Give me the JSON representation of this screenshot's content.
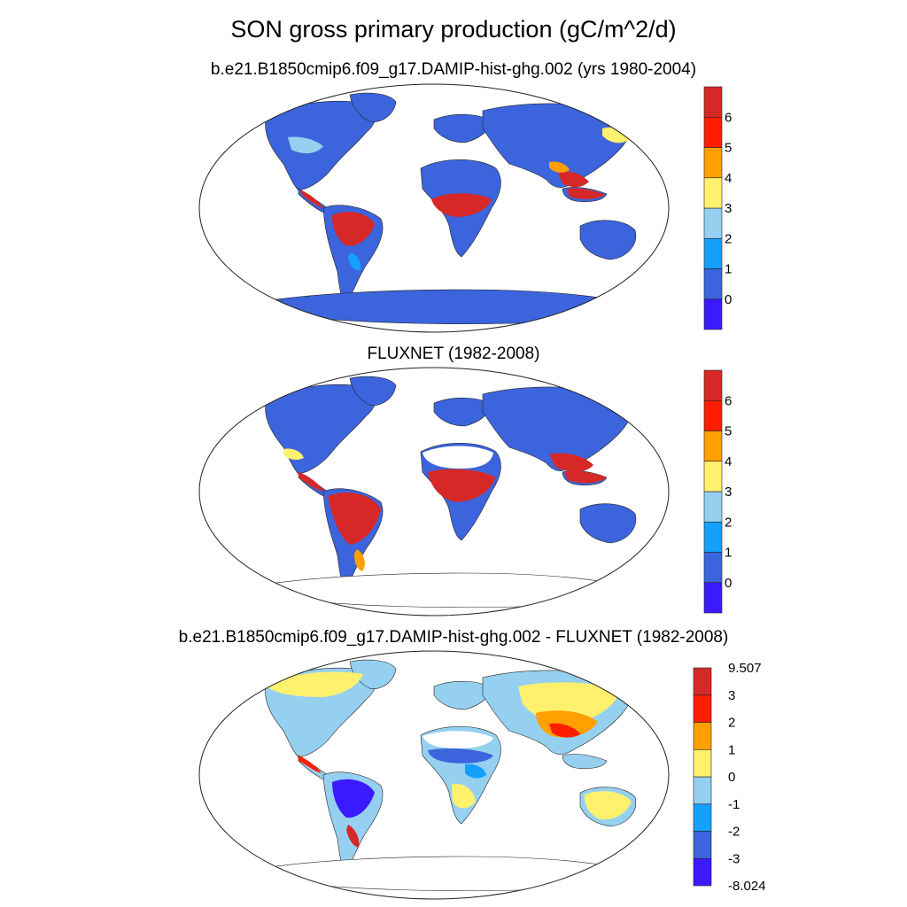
{
  "title": "SON gross primary production (gC/m^2/d)",
  "panels": [
    {
      "title": "b.e21.B1850cmip6.f09_g17.DAMIP-hist-ghg.002 (yrs 1980-2004)",
      "colorbar": {
        "colors": [
          "#3b1aff",
          "#3c64dc",
          "#14a0ff",
          "#96d0f0",
          "#fff06e",
          "#ffa000",
          "#ff1e00",
          "#d72828"
        ],
        "labels": [
          "0",
          "1",
          "2",
          "3",
          "4",
          "5",
          "6"
        ]
      }
    },
    {
      "title": "FLUXNET (1982-2008)",
      "colorbar": {
        "colors": [
          "#3b1aff",
          "#3c64dc",
          "#14a0ff",
          "#96d0f0",
          "#fff06e",
          "#ffa000",
          "#ff1e00",
          "#d72828"
        ],
        "labels": [
          "0",
          "1",
          "2",
          "3",
          "4",
          "5",
          "6"
        ]
      }
    },
    {
      "title": "b.e21.B1850cmip6.f09_g17.DAMIP-hist-ghg.002 - FLUXNET (1982-2008)",
      "colorbar": {
        "colors": [
          "#3b1aff",
          "#3c64dc",
          "#14a0ff",
          "#96d0f0",
          "#fff06e",
          "#ffa000",
          "#ff1e00",
          "#d72828"
        ],
        "labels": [
          "-8.024",
          "-3",
          "-2",
          "-1",
          "0",
          "1",
          "2",
          "3",
          "9.507"
        ]
      }
    }
  ]
}
